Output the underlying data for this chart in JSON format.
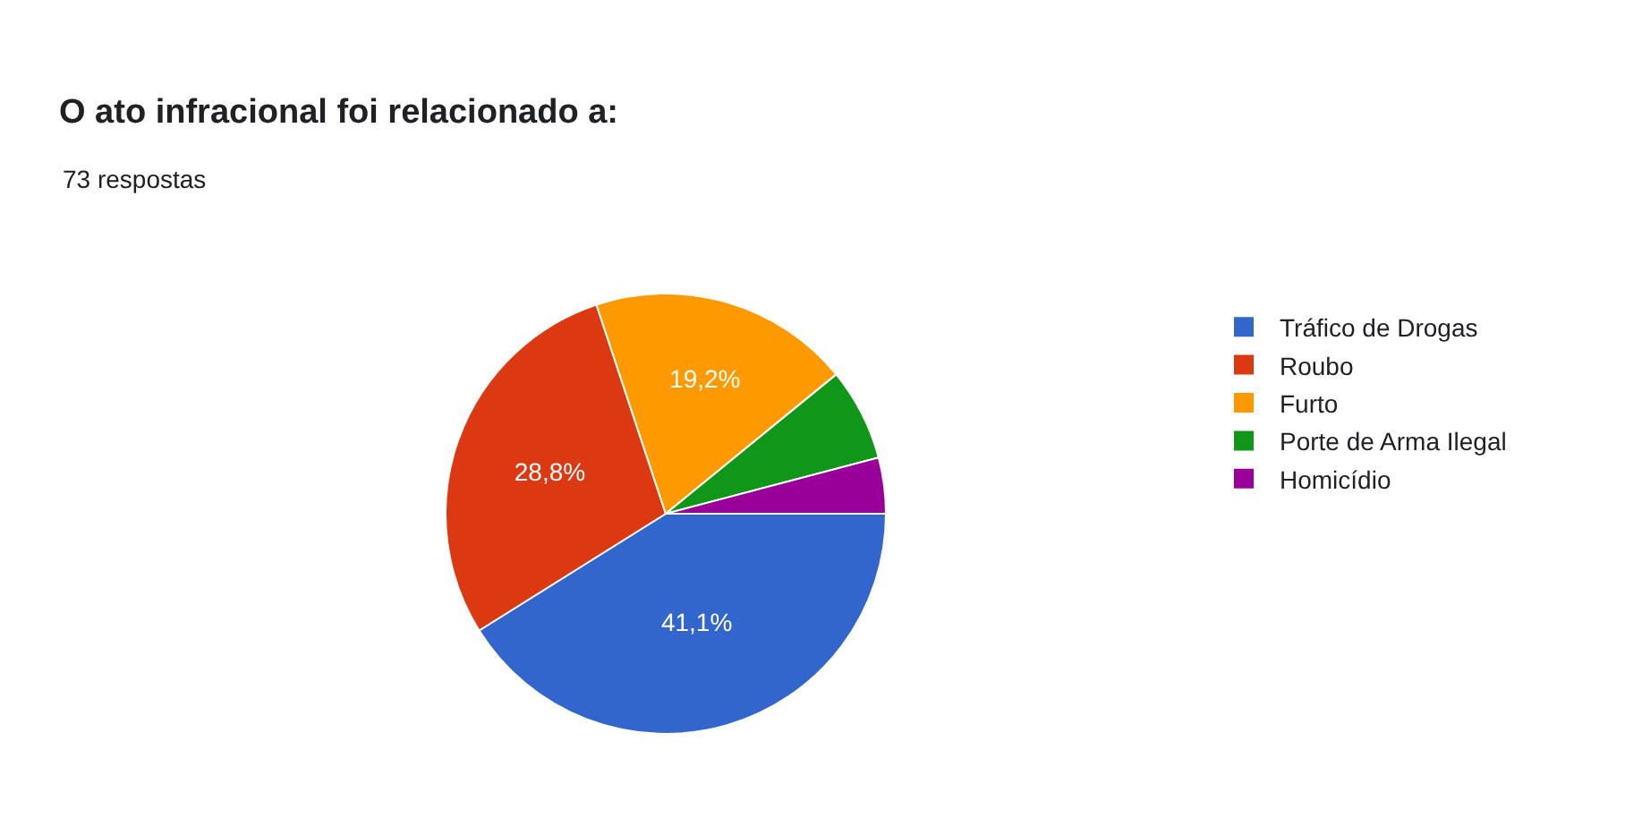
{
  "chart_data": {
    "type": "pie",
    "title": "O ato infracional foi relacionado a:",
    "subtitle": "73 respostas",
    "categories": [
      "Tráfico de Drogas",
      "Roubo",
      "Furto",
      "Porte de Arma Ilegal",
      "Homicídio"
    ],
    "values": [
      41.1,
      28.8,
      19.2,
      6.8,
      4.1
    ],
    "value_labels": [
      "41,1%",
      "28,8%",
      "19,2%",
      null,
      null
    ],
    "colors": [
      "#3366cc",
      "#dc3912",
      "#ff9900",
      "#109618",
      "#990099"
    ],
    "legend": "right"
  }
}
